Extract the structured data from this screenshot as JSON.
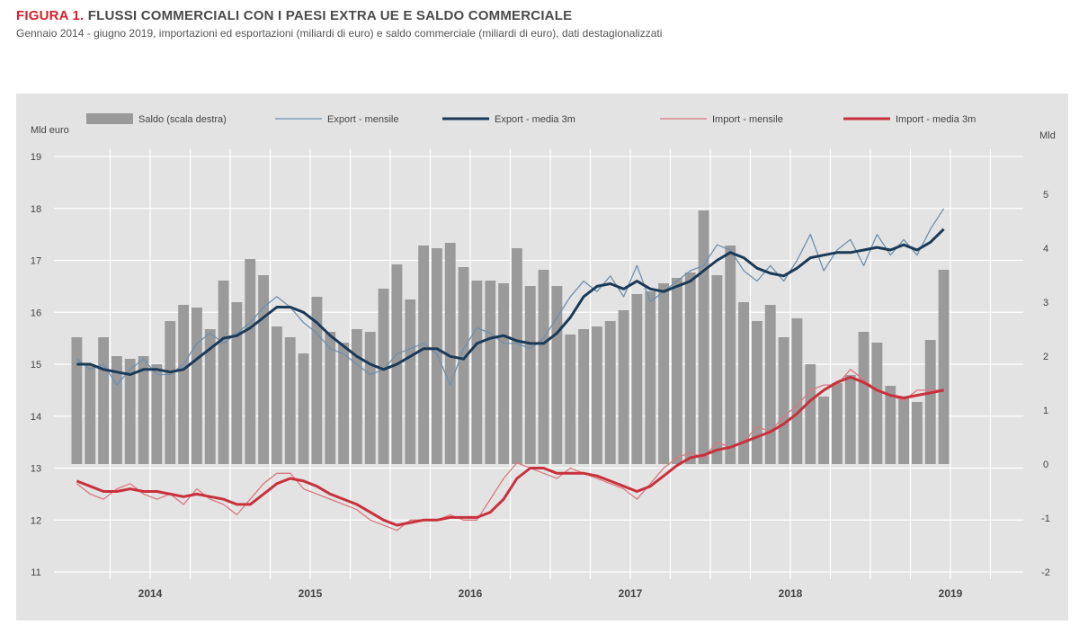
{
  "header": {
    "figure_label": "FIGURA 1.",
    "title": "FLUSSI COMMERCIALI CON I PAESI EXTRA UE E SALDO COMMERCIALE",
    "subtitle": "Gennaio 2014 - giugno 2019, importazioni ed esportazioni (miliardi di euro) e saldo commerciale (miliardi di euro), dati destagionalizzati"
  },
  "colors": {
    "balance_bars": "#9a9a9a",
    "export": "#1b3a57",
    "export_monthly": "#6f90ad",
    "import": "#c8313c",
    "import_monthly": "#d87a80",
    "panel_background": "#e3e3e3",
    "grid": "#ffffff"
  },
  "chart_data": {
    "type": "bar",
    "legend_position": "top",
    "grid": true,
    "legend": [
      "Saldo (scala destra)",
      "Export - mensile",
      "Export - media 3m",
      "Import - mensile",
      "Import - media 3m"
    ],
    "yleft_label": "Mld euro",
    "yright_label": "Mld",
    "yleft_ticks": [
      "11",
      "12",
      "13",
      "14",
      "15",
      "16",
      "17",
      "18",
      "19"
    ],
    "yright_ticks": [
      "-2",
      "-1",
      "0",
      "1",
      "2",
      "3",
      "4",
      "5"
    ],
    "yleft_lim": [
      11,
      19
    ],
    "yright_lim": [
      -2,
      5.7
    ],
    "x_labels": [
      "2014",
      "2015",
      "2016",
      "2017",
      "2018",
      "2019"
    ],
    "x_start": "2014-01",
    "series": [
      {
        "name": "Saldo (scala destra)",
        "kind": "bar",
        "axis": "right",
        "values": [
          2.35,
          1.85,
          2.35,
          2.0,
          1.95,
          2.0,
          1.85,
          2.65,
          2.95,
          2.9,
          2.5,
          3.4,
          3.0,
          3.8,
          3.5,
          2.55,
          2.35,
          2.05,
          3.1,
          2.45,
          2.25,
          2.5,
          2.45,
          3.25,
          3.7,
          3.05,
          4.05,
          4.0,
          4.1,
          3.65,
          3.4,
          3.4,
          3.35,
          4.0,
          3.3,
          3.6,
          3.3,
          2.4,
          2.5,
          2.55,
          2.65,
          2.85,
          3.15,
          3.2,
          3.35,
          3.45,
          3.55,
          4.7,
          3.5,
          4.05,
          3.0,
          2.65,
          2.95,
          2.35,
          2.7,
          1.85,
          1.25,
          1.5,
          1.65,
          2.45,
          2.25,
          1.45,
          1.25,
          1.15,
          2.3,
          3.6
        ]
      },
      {
        "name": "Export - mensile",
        "kind": "line",
        "axis": "left",
        "values": [
          15.1,
          14.9,
          15.0,
          14.6,
          14.9,
          15.1,
          14.8,
          14.8,
          15.0,
          15.4,
          15.6,
          15.4,
          15.6,
          15.8,
          16.1,
          16.3,
          16.1,
          15.8,
          15.6,
          15.3,
          15.2,
          15.0,
          14.8,
          14.9,
          15.2,
          15.3,
          15.4,
          15.2,
          14.6,
          15.3,
          15.7,
          15.6,
          15.4,
          15.4,
          15.3,
          15.5,
          15.9,
          16.3,
          16.6,
          16.4,
          16.7,
          16.3,
          16.9,
          16.2,
          16.4,
          16.6,
          16.8,
          16.9,
          17.3,
          17.2,
          16.8,
          16.6,
          16.9,
          16.6,
          17.0,
          17.5,
          16.8,
          17.2,
          17.4,
          16.9,
          17.5,
          17.1,
          17.4,
          17.1,
          17.6,
          18.0
        ]
      },
      {
        "name": "Export - media 3m",
        "kind": "line",
        "axis": "left",
        "values": [
          15.0,
          15.0,
          14.9,
          14.85,
          14.8,
          14.9,
          14.9,
          14.85,
          14.9,
          15.1,
          15.3,
          15.5,
          15.55,
          15.7,
          15.9,
          16.1,
          16.1,
          16.0,
          15.8,
          15.55,
          15.35,
          15.15,
          15.0,
          14.9,
          15.0,
          15.15,
          15.3,
          15.3,
          15.15,
          15.1,
          15.4,
          15.5,
          15.55,
          15.45,
          15.4,
          15.4,
          15.6,
          15.9,
          16.3,
          16.5,
          16.55,
          16.45,
          16.6,
          16.45,
          16.4,
          16.5,
          16.6,
          16.8,
          17.0,
          17.15,
          17.05,
          16.85,
          16.75,
          16.7,
          16.85,
          17.05,
          17.1,
          17.15,
          17.15,
          17.2,
          17.25,
          17.2,
          17.3,
          17.2,
          17.35,
          17.6
        ]
      },
      {
        "name": "Import - mensile",
        "kind": "line",
        "axis": "left",
        "values": [
          12.7,
          12.5,
          12.4,
          12.6,
          12.7,
          12.5,
          12.4,
          12.5,
          12.3,
          12.6,
          12.4,
          12.3,
          12.1,
          12.4,
          12.7,
          12.9,
          12.9,
          12.6,
          12.5,
          12.4,
          12.3,
          12.2,
          12.0,
          11.9,
          11.8,
          12.0,
          12.0,
          12.0,
          12.1,
          12.0,
          12.0,
          12.4,
          12.8,
          13.1,
          13.0,
          12.9,
          12.8,
          13.0,
          12.9,
          12.8,
          12.7,
          12.6,
          12.4,
          12.7,
          13.0,
          13.2,
          13.3,
          13.2,
          13.5,
          13.4,
          13.5,
          13.8,
          13.7,
          14.0,
          14.2,
          14.5,
          14.6,
          14.6,
          14.9,
          14.7,
          14.5,
          14.4,
          14.3,
          14.5,
          14.5,
          14.5
        ]
      },
      {
        "name": "Import - media 3m",
        "kind": "line",
        "axis": "left",
        "values": [
          12.75,
          12.65,
          12.55,
          12.55,
          12.6,
          12.55,
          12.55,
          12.5,
          12.45,
          12.5,
          12.45,
          12.4,
          12.3,
          12.3,
          12.5,
          12.7,
          12.8,
          12.75,
          12.65,
          12.5,
          12.4,
          12.3,
          12.15,
          12.0,
          11.9,
          11.95,
          12.0,
          12.0,
          12.05,
          12.05,
          12.05,
          12.15,
          12.4,
          12.8,
          13.0,
          13.0,
          12.9,
          12.9,
          12.9,
          12.85,
          12.75,
          12.65,
          12.55,
          12.65,
          12.85,
          13.05,
          13.2,
          13.25,
          13.35,
          13.4,
          13.5,
          13.6,
          13.7,
          13.85,
          14.05,
          14.3,
          14.5,
          14.65,
          14.75,
          14.65,
          14.5,
          14.4,
          14.35,
          14.4,
          14.45,
          14.5
        ]
      }
    ]
  }
}
